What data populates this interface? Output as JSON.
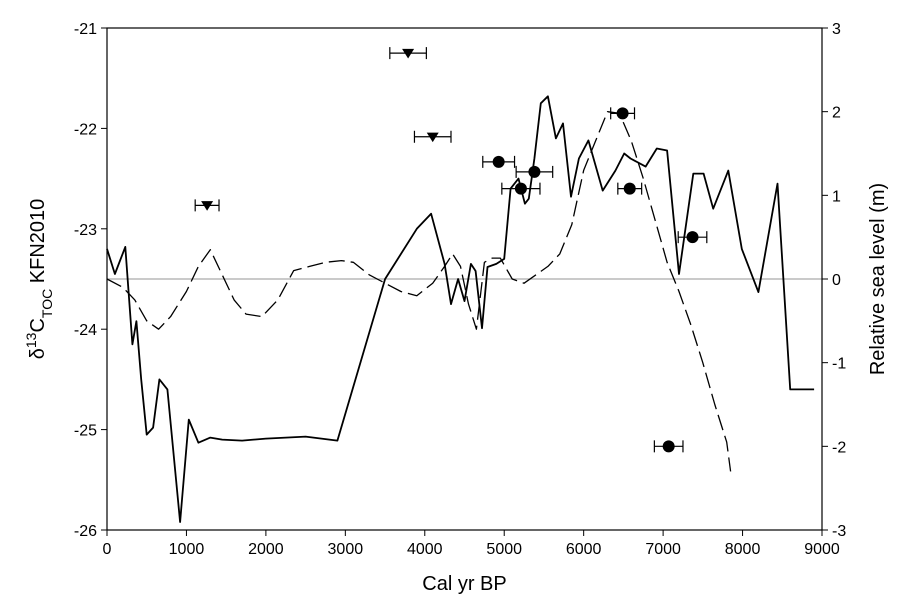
{
  "chart_data": {
    "type": "line",
    "title": "",
    "xlabel": "Cal yr BP",
    "ylabel_left": {
      "prefix": "δ",
      "sup": "13",
      "main": "C",
      "sub": "TOC",
      "suffix": " KFN2010"
    },
    "ylabel_right": "Relative sea level (m)",
    "xlim": [
      0,
      9000
    ],
    "ylim_left": [
      -26,
      -21
    ],
    "ylim_right": [
      -3,
      3
    ],
    "x_ticks": [
      0,
      1000,
      2000,
      3000,
      4000,
      5000,
      6000,
      7000,
      8000,
      9000
    ],
    "x_tick_labels": [
      "0",
      "1000",
      "2000",
      "3000",
      "4000",
      "5000",
      "6000",
      "7000",
      "8000",
      "9000"
    ],
    "y_left_ticks": [
      -26,
      -25,
      -24,
      -23,
      -22,
      -21
    ],
    "y_left_tick_labels": [
      "-26",
      "-25",
      "-24",
      "-23",
      "-22",
      "-21"
    ],
    "y_right_ticks": [
      -3,
      -2,
      -1,
      0,
      1,
      2,
      3
    ],
    "y_right_tick_labels": [
      "-3",
      "-2",
      "-1",
      "0",
      "1",
      "2",
      "3"
    ],
    "reference_line": {
      "axis": "right",
      "value": 0,
      "color": "#aaaaaa"
    },
    "series": [
      {
        "axis": "left",
        "style": "solid",
        "color": "#000000",
        "x": [
          0,
          100,
          230,
          320,
          370,
          430,
          500,
          580,
          660,
          760,
          920,
          1030,
          1150,
          1300,
          1450,
          1700,
          2000,
          2500,
          2900,
          3500,
          3900,
          4080,
          4250,
          4330,
          4420,
          4500,
          4580,
          4640,
          4720,
          4790,
          4900,
          5000,
          5080,
          5180,
          5260,
          5310,
          5380,
          5460,
          5550,
          5650,
          5740,
          5840,
          5940,
          6060,
          6240,
          6400,
          6510,
          6590,
          6780,
          6920,
          7050,
          7200,
          7380,
          7510,
          7630,
          7820,
          7990,
          8200,
          8440,
          8600,
          8900
        ],
        "y": [
          -23.2,
          -23.45,
          -23.18,
          -24.15,
          -23.92,
          -24.5,
          -25.05,
          -24.98,
          -24.5,
          -24.6,
          -25.92,
          -24.9,
          -25.13,
          -25.08,
          -25.1,
          -25.11,
          -25.09,
          -25.07,
          -25.11,
          -23.5,
          -23.0,
          -22.85,
          -23.35,
          -23.75,
          -23.5,
          -23.72,
          -23.35,
          -23.42,
          -23.99,
          -23.38,
          -23.35,
          -23.3,
          -22.6,
          -22.5,
          -22.75,
          -22.7,
          -22.3,
          -21.75,
          -21.68,
          -22.1,
          -21.95,
          -22.68,
          -22.3,
          -22.12,
          -22.62,
          -22.42,
          -22.25,
          -22.3,
          -22.38,
          -22.2,
          -22.22,
          -23.45,
          -22.45,
          -22.45,
          -22.8,
          -22.42,
          -23.2,
          -23.63,
          -22.55,
          -24.6,
          -24.6
        ]
      },
      {
        "axis": "right",
        "style": "dashed",
        "color": "#000000",
        "x": [
          0,
          200,
          350,
          500,
          650,
          800,
          1000,
          1150,
          1300,
          1450,
          1600,
          1750,
          1950,
          2150,
          2350,
          2550,
          2750,
          2950,
          3100,
          3300,
          3500,
          3700,
          3900,
          4100,
          4250,
          4350,
          4450,
          4550,
          4650,
          4750,
          4850,
          4950,
          5100,
          5250,
          5400,
          5550,
          5700,
          5850,
          6000,
          6150,
          6300,
          6450,
          6600,
          6750,
          6900,
          7050,
          7200,
          7350,
          7500,
          7650,
          7800,
          7850
        ],
        "y": [
          0,
          -0.1,
          -0.25,
          -0.5,
          -0.6,
          -0.45,
          -0.15,
          0.15,
          0.35,
          0.05,
          -0.25,
          -0.42,
          -0.45,
          -0.25,
          0.1,
          0.15,
          0.2,
          0.22,
          0.2,
          0.05,
          -0.05,
          -0.15,
          -0.2,
          -0.05,
          0.15,
          0.3,
          0.15,
          -0.3,
          -0.6,
          0.2,
          0.25,
          0.25,
          0.0,
          -0.05,
          0.05,
          0.15,
          0.3,
          0.65,
          1.3,
          1.65,
          2.0,
          1.98,
          1.65,
          1.2,
          0.7,
          0.2,
          -0.15,
          -0.55,
          -1.0,
          -1.5,
          -1.95,
          -2.3
        ]
      }
    ],
    "points": [
      {
        "marker": "triangle",
        "axis": "right",
        "x": 1260,
        "y": 0.88,
        "xerr": 150
      },
      {
        "marker": "triangle",
        "axis": "right",
        "x": 3790,
        "y": 2.7,
        "xerr": 230
      },
      {
        "marker": "triangle",
        "axis": "right",
        "x": 4100,
        "y": 1.7,
        "xerr": 230
      },
      {
        "marker": "circle",
        "axis": "right",
        "x": 4930,
        "y": 1.4,
        "xerr": 200
      },
      {
        "marker": "circle",
        "axis": "right",
        "x": 5210,
        "y": 1.08,
        "xerr": 240
      },
      {
        "marker": "circle",
        "axis": "right",
        "x": 5380,
        "y": 1.28,
        "xerr": 230
      },
      {
        "marker": "circle",
        "axis": "right",
        "x": 6490,
        "y": 1.98,
        "xerr": 150
      },
      {
        "marker": "circle",
        "axis": "right",
        "x": 6580,
        "y": 1.08,
        "xerr": 150
      },
      {
        "marker": "circle",
        "axis": "right",
        "x": 7370,
        "y": 0.5,
        "xerr": 180
      },
      {
        "marker": "circle",
        "axis": "right",
        "x": 7070,
        "y": -2.0,
        "xerr": 180
      }
    ]
  }
}
